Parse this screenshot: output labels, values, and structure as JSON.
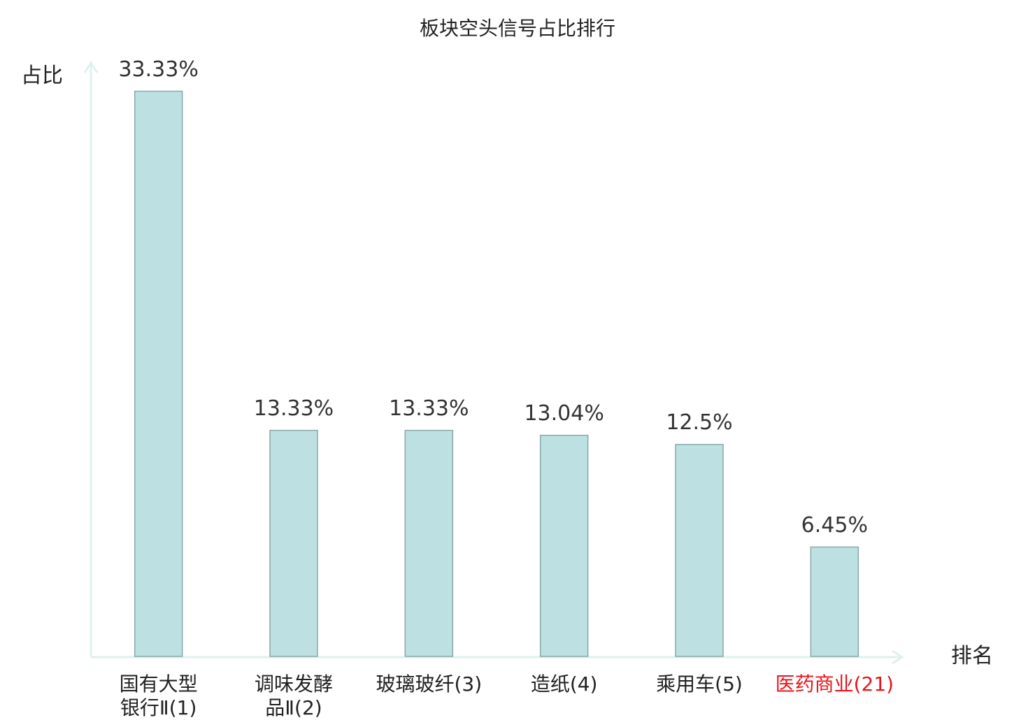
{
  "chart_data": {
    "type": "bar",
    "title": "板块空头信号占比排行",
    "y_label": "占比",
    "x_label": "排名",
    "categories": [
      "国有大型\n银行Ⅱ(1)",
      "调味发酵\n品Ⅱ(2)",
      "玻璃玻纤(3)",
      "造纸(4)",
      "乘用车(5)",
      "医药商业(21)"
    ],
    "category_colors": [
      "#222222",
      "#222222",
      "#222222",
      "#222222",
      "#222222",
      "#e8141b"
    ],
    "values": [
      33.33,
      13.33,
      13.33,
      13.04,
      12.5,
      6.45
    ],
    "value_labels": [
      "33.33%",
      "13.33%",
      "13.33%",
      "13.04%",
      "12.5%",
      "6.45%"
    ],
    "color": "#bde0e2",
    "edge_color": "#8aa8aa",
    "axis_color": "#dff0ee",
    "ylim": [
      0,
      35
    ]
  }
}
